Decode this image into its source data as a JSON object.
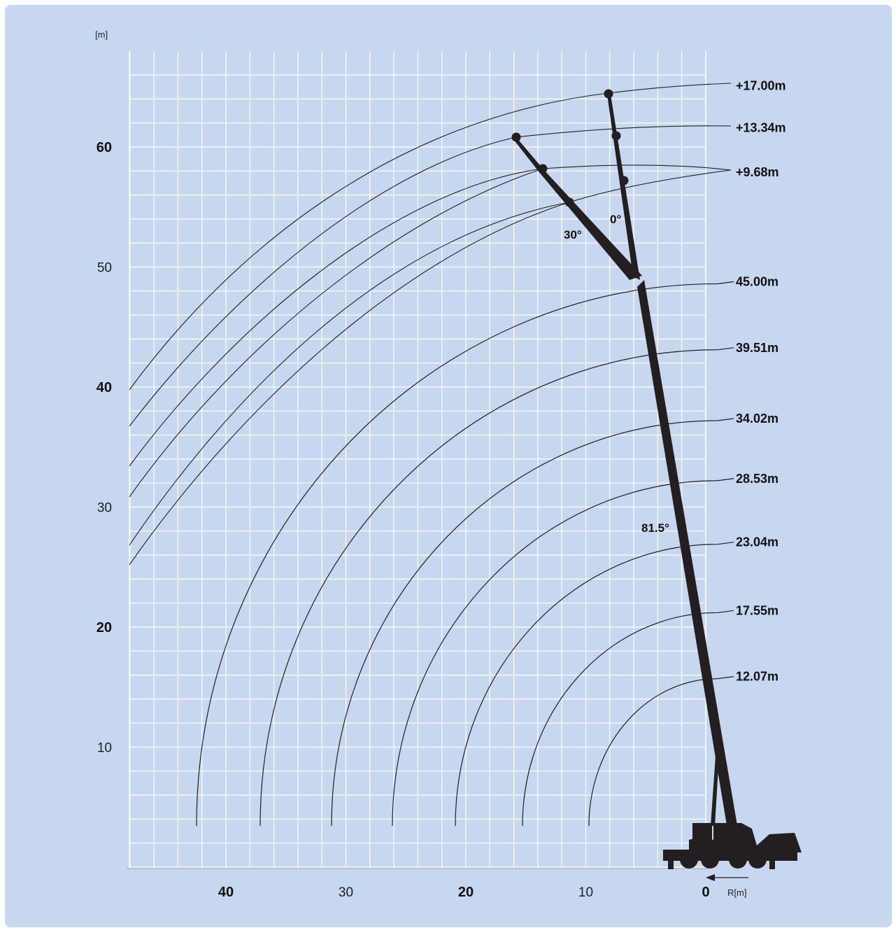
{
  "diagram": {
    "y_unit": "[m]",
    "x_unit": "R[m]",
    "colors": {
      "background": "#c6d7ef",
      "grid": "#ffffff",
      "ink": "#231f20"
    },
    "x_axis": {
      "range": [
        48,
        -7
      ],
      "ticks": [
        {
          "value": 40,
          "label": "40",
          "bold": true
        },
        {
          "value": 30,
          "label": "30",
          "bold": false
        },
        {
          "value": 20,
          "label": "20",
          "bold": true
        },
        {
          "value": 10,
          "label": "10",
          "bold": false
        },
        {
          "value": 0,
          "label": "0",
          "bold": true
        }
      ],
      "grid_step": 2
    },
    "y_axis": {
      "range": [
        -0.5,
        67
      ],
      "ticks": [
        {
          "value": 60,
          "label": "60",
          "bold": true
        },
        {
          "value": 50,
          "label": "50",
          "bold": false
        },
        {
          "value": 40,
          "label": "40",
          "bold": true
        },
        {
          "value": 30,
          "label": "30",
          "bold": false
        },
        {
          "value": 20,
          "label": "20",
          "bold": true
        },
        {
          "value": 10,
          "label": "10",
          "bold": false
        }
      ],
      "grid_step": 2
    },
    "main_boom_lengths": [
      {
        "label": "45.00m",
        "label_y": 48.6
      },
      {
        "label": "39.51m",
        "label_y": 43.1
      },
      {
        "label": "34.02m",
        "label_y": 37.2
      },
      {
        "label": "28.53m",
        "label_y": 32.2
      },
      {
        "label": "23.04m",
        "label_y": 26.9
      },
      {
        "label": "17.55m",
        "label_y": 21.2
      },
      {
        "label": "12.07m",
        "label_y": 15.7
      }
    ],
    "jib_lengths": [
      {
        "label": "+17.00m",
        "label_y": 65.1
      },
      {
        "label": "+13.34m",
        "label_y": 61.6
      },
      {
        "label": "+9.68m",
        "label_y": 57.9
      }
    ],
    "angles": {
      "boom": "81.5°",
      "jib_0": "0°",
      "jib_30": "30°"
    }
  }
}
